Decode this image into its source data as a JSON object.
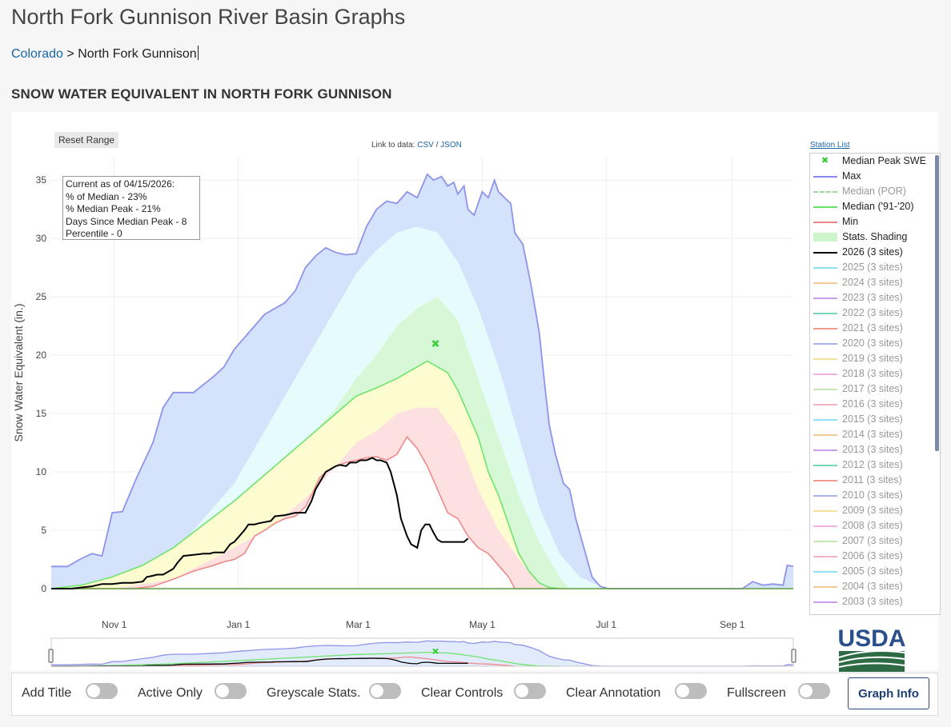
{
  "page": {
    "title": "North Fork Gunnison River Basin Graphs"
  },
  "breadcrumb": {
    "root": "Colorado",
    "separator": ">",
    "current": "North Fork Gunnison"
  },
  "section_title": "SNOW WATER EQUIVALENT IN NORTH FORK GUNNISON",
  "toolbar": {
    "reset_label": "Reset Range",
    "link_prefix": "Link to data:",
    "csv": "CSV",
    "slash": "/",
    "json": "JSON",
    "station_list": "Station List"
  },
  "status_box": {
    "line1": "Current as of 04/15/2026:",
    "line2": "% of Median - 23%",
    "line3": "% Median Peak - 21%",
    "line4": "Days Since Median Peak - 8",
    "line5": "Percentile - 0"
  },
  "legend": [
    {
      "label": "Median Peak SWE",
      "color": "#33cc33",
      "type": "marker",
      "active": true
    },
    {
      "label": "Max",
      "color": "#8888ee",
      "type": "line",
      "active": true
    },
    {
      "label": "Median (POR)",
      "color": "#99dd99",
      "type": "dash",
      "active": false
    },
    {
      "label": "Median ('91-'20)",
      "color": "#66e066",
      "type": "line",
      "active": true
    },
    {
      "label": "Min",
      "color": "#ee8888",
      "type": "line",
      "active": true
    },
    {
      "label": "Stats. Shading",
      "color": "#ccf5cc",
      "type": "band",
      "active": true
    },
    {
      "label": "2026 (3 sites)",
      "color": "#000000",
      "type": "line",
      "active": true
    },
    {
      "label": "2025 (3 sites)",
      "color": "#8fe0f0",
      "type": "line",
      "active": false
    },
    {
      "label": "2024 (3 sites)",
      "color": "#f5c89a",
      "type": "line",
      "active": false
    },
    {
      "label": "2023 (3 sites)",
      "color": "#c9a0ee",
      "type": "line",
      "active": false
    },
    {
      "label": "2022 (3 sites)",
      "color": "#7ad6b8",
      "type": "line",
      "active": false
    },
    {
      "label": "2021 (3 sites)",
      "color": "#f29a8f",
      "type": "line",
      "active": false
    },
    {
      "label": "2020 (3 sites)",
      "color": "#a8b3e8",
      "type": "line",
      "active": false
    },
    {
      "label": "2019 (3 sites)",
      "color": "#f5e29a",
      "type": "line",
      "active": false
    },
    {
      "label": "2018 (3 sites)",
      "color": "#f0b3e6",
      "type": "line",
      "active": false
    },
    {
      "label": "2017 (3 sites)",
      "color": "#c6e6b3",
      "type": "line",
      "active": false
    },
    {
      "label": "2016 (3 sites)",
      "color": "#f5b3c2",
      "type": "line",
      "active": false
    },
    {
      "label": "2015 (3 sites)",
      "color": "#8fe0f0",
      "type": "line",
      "active": false
    },
    {
      "label": "2014 (3 sites)",
      "color": "#f5c89a",
      "type": "line",
      "active": false
    },
    {
      "label": "2013 (3 sites)",
      "color": "#c9a0ee",
      "type": "line",
      "active": false
    },
    {
      "label": "2012 (3 sites)",
      "color": "#7ad6b8",
      "type": "line",
      "active": false
    },
    {
      "label": "2011 (3 sites)",
      "color": "#f29a8f",
      "type": "line",
      "active": false
    },
    {
      "label": "2010 (3 sites)",
      "color": "#a8b3e8",
      "type": "line",
      "active": false
    },
    {
      "label": "2009 (3 sites)",
      "color": "#f5e29a",
      "type": "line",
      "active": false
    },
    {
      "label": "2008 (3 sites)",
      "color": "#f0b3e6",
      "type": "line",
      "active": false
    },
    {
      "label": "2007 (3 sites)",
      "color": "#c6e6b3",
      "type": "line",
      "active": false
    },
    {
      "label": "2006 (3 sites)",
      "color": "#f5b3c2",
      "type": "line",
      "active": false
    },
    {
      "label": "2005 (3 sites)",
      "color": "#8fe0f0",
      "type": "line",
      "active": false
    },
    {
      "label": "2004 (3 sites)",
      "color": "#f5c89a",
      "type": "line",
      "active": false
    },
    {
      "label": "2003 (3 sites)",
      "color": "#c9a0ee",
      "type": "line",
      "active": false
    }
  ],
  "controls": [
    {
      "label": "Add Title"
    },
    {
      "label": "Active Only"
    },
    {
      "label": "Greyscale Stats."
    },
    {
      "label": "Clear Controls"
    },
    {
      "label": "Clear Annotation"
    },
    {
      "label": "Fullscreen"
    }
  ],
  "graph_info_label": "Graph Info",
  "logo_text": "USDA",
  "chart_data": {
    "type": "area",
    "ylabel": "Snow Water Equivalent (in.)",
    "ylim": [
      0,
      37
    ],
    "yticks": [
      0,
      5,
      10,
      15,
      20,
      25,
      30,
      35
    ],
    "xticks": [
      {
        "label": "Nov 1",
        "day": 31
      },
      {
        "label": "Jan 1",
        "day": 92
      },
      {
        "label": "Mar 1",
        "day": 151
      },
      {
        "label": "May 1",
        "day": 212
      },
      {
        "label": "Jul 1",
        "day": 273
      },
      {
        "label": "Sep 1",
        "day": 335
      }
    ],
    "x_unit": "days since Oct 1",
    "xlim": [
      0,
      365
    ],
    "grid": true,
    "median_peak": {
      "day": 189,
      "value": 21.0
    },
    "series": {
      "max": {
        "day": [
          0,
          8,
          14,
          20,
          25,
          30,
          35,
          42,
          50,
          55,
          60,
          65,
          70,
          75,
          80,
          85,
          90,
          95,
          100,
          105,
          110,
          115,
          120,
          125,
          130,
          135,
          140,
          145,
          150,
          155,
          160,
          165,
          170,
          175,
          180,
          185,
          188,
          192,
          195,
          198,
          200,
          203,
          205,
          208,
          210,
          212,
          215,
          218,
          220,
          223,
          226,
          228,
          230,
          232,
          236,
          240,
          243,
          245,
          248,
          252,
          255,
          258,
          262,
          266,
          270,
          274,
          280,
          287,
          292,
          296,
          300,
          340,
          345,
          350,
          355,
          360,
          362,
          365
        ],
        "value": [
          1.9,
          1.9,
          2.5,
          3.0,
          2.8,
          6.5,
          6.6,
          9.5,
          12.5,
          15.5,
          16.8,
          16.8,
          16.8,
          17.5,
          18.2,
          19.0,
          20.5,
          21.5,
          22.5,
          23.5,
          24.0,
          24.5,
          25.5,
          27.5,
          28.5,
          29.2,
          28.8,
          28.6,
          28.7,
          31.0,
          32.5,
          33.2,
          33.0,
          34.0,
          33.5,
          35.5,
          35.0,
          35.3,
          34.5,
          34.8,
          33.8,
          34.5,
          32.5,
          32.0,
          33.0,
          34.0,
          33.5,
          35.0,
          34.0,
          33.5,
          33.0,
          30.5,
          30.0,
          29.5,
          26.0,
          22.0,
          17.0,
          14.0,
          11.5,
          9.0,
          8.5,
          6.0,
          3.5,
          1.0,
          0.2,
          0,
          0,
          0,
          0,
          0,
          0,
          0,
          0.6,
          0.3,
          0.4,
          0.3,
          2.0,
          1.9
        ]
      },
      "p90": {
        "day": [
          0,
          30,
          60,
          90,
          110,
          120,
          130,
          140,
          150,
          160,
          170,
          180,
          190,
          200,
          210,
          220,
          230,
          240,
          250,
          260,
          270,
          275
        ],
        "value": [
          0,
          0.5,
          3,
          9,
          15,
          18,
          21,
          24,
          27,
          29,
          30.5,
          31,
          30.5,
          28,
          24,
          19,
          13,
          7,
          3,
          1,
          0.2,
          0
        ]
      },
      "p70": {
        "day": [
          0,
          30,
          60,
          90,
          110,
          120,
          130,
          140,
          150,
          160,
          170,
          180,
          190,
          200,
          210,
          220,
          230,
          240,
          250,
          255
        ],
        "value": [
          0,
          0.2,
          2,
          6,
          9,
          11,
          13.5,
          15.5,
          18,
          20,
          22.5,
          24,
          25,
          23,
          18,
          13,
          8,
          4,
          1,
          0
        ]
      },
      "median": {
        "day": [
          0,
          15,
          30,
          45,
          60,
          75,
          90,
          100,
          110,
          120,
          130,
          140,
          150,
          160,
          170,
          180,
          185,
          190,
          195,
          200,
          205,
          210,
          215,
          220,
          225,
          230,
          235,
          240,
          245,
          250
        ],
        "value": [
          0,
          0.3,
          1.0,
          2.0,
          3.5,
          5.5,
          7.5,
          9.0,
          10.5,
          12.0,
          13.5,
          15.0,
          16.5,
          17.2,
          18.0,
          19.0,
          19.5,
          19.0,
          18.5,
          17.0,
          15.0,
          13.0,
          10.0,
          8.0,
          5.5,
          3.0,
          1.5,
          0.5,
          0.1,
          0
        ]
      },
      "p30": {
        "day": [
          0,
          30,
          60,
          90,
          110,
          120,
          130,
          140,
          150,
          160,
          170,
          180,
          190,
          200,
          210,
          220,
          230,
          240,
          245
        ],
        "value": [
          0,
          0,
          0.8,
          3.5,
          5.5,
          7,
          8.5,
          10.5,
          12.5,
          13.5,
          15,
          15.5,
          15.5,
          13,
          8.5,
          5,
          2.5,
          0.5,
          0
        ]
      },
      "min": {
        "day": [
          0,
          40,
          50,
          60,
          70,
          80,
          85,
          90,
          95,
          100,
          105,
          110,
          115,
          120,
          125,
          128,
          132,
          135,
          140,
          145,
          150,
          155,
          160,
          165,
          170,
          175,
          180,
          185,
          190,
          195,
          200,
          205,
          210,
          215,
          220,
          225,
          228
        ],
        "value": [
          0,
          0,
          0.2,
          0.8,
          1.5,
          2.0,
          2.3,
          2.5,
          3.0,
          4.5,
          5.0,
          5.6,
          6.0,
          6.2,
          7.0,
          8.0,
          9.5,
          10.0,
          10.5,
          10.8,
          11.0,
          11.2,
          11.3,
          11.0,
          11.5,
          13.0,
          12.0,
          10.5,
          8.5,
          6.5,
          6.0,
          4.5,
          3.5,
          3.0,
          2.0,
          1.0,
          0
        ]
      },
      "year_2026": {
        "day": [
          0,
          5,
          10,
          15,
          20,
          25,
          30,
          35,
          40,
          45,
          47,
          50,
          52,
          55,
          60,
          62,
          65,
          70,
          75,
          78,
          80,
          85,
          88,
          90,
          92,
          95,
          97,
          100,
          102,
          105,
          108,
          110,
          115,
          120,
          125,
          128,
          130,
          135,
          140,
          142,
          145,
          147,
          150,
          152,
          155,
          158,
          160,
          162,
          165,
          167,
          170,
          172,
          175,
          177,
          180,
          182,
          184,
          186,
          188,
          190,
          192,
          194,
          196,
          200,
          203,
          205
        ],
        "value": [
          0,
          0,
          0,
          0.1,
          0.2,
          0.4,
          0.4,
          0.5,
          0.5,
          0.6,
          1.0,
          1.1,
          1.2,
          1.2,
          1.7,
          2.2,
          2.8,
          2.9,
          3.0,
          3.0,
          3.1,
          3.1,
          3.8,
          4.0,
          4.4,
          5.0,
          5.5,
          5.5,
          5.6,
          5.7,
          5.8,
          6.2,
          6.3,
          6.5,
          6.5,
          7.5,
          8.5,
          10.0,
          10.5,
          10.6,
          10.5,
          10.8,
          10.8,
          11.0,
          11.0,
          11.2,
          11.0,
          11.0,
          10.8,
          10.0,
          8.0,
          6.0,
          4.5,
          3.8,
          3.5,
          5.0,
          5.5,
          5.5,
          4.8,
          4.2,
          4.0,
          4.0,
          4.0,
          4.0,
          4.0,
          4.3
        ]
      }
    }
  }
}
